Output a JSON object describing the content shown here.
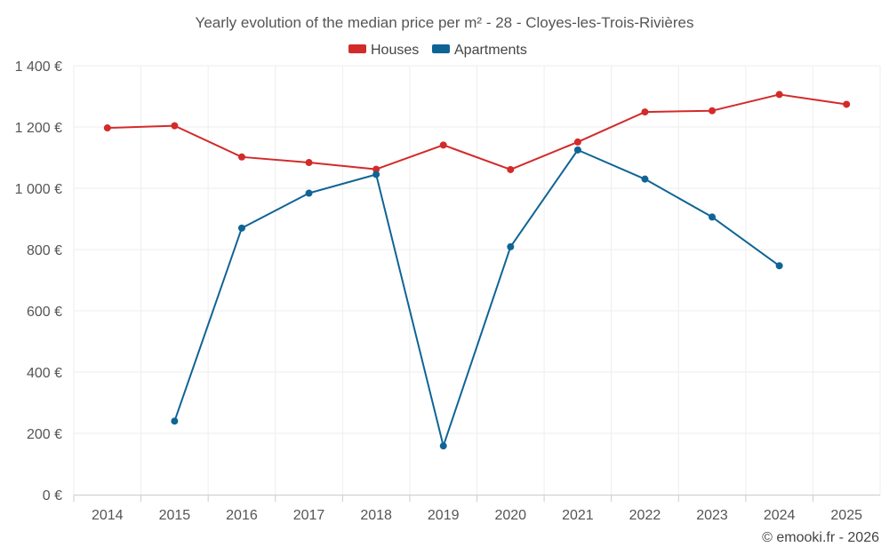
{
  "chart_data": {
    "type": "line",
    "title": "Yearly evolution of the median price per m² - 28 - Cloyes-les-Trois-Rivières",
    "categories": [
      "2014",
      "2015",
      "2016",
      "2017",
      "2018",
      "2019",
      "2020",
      "2021",
      "2022",
      "2023",
      "2024",
      "2025"
    ],
    "y_tick_labels": [
      "0 €",
      "200 €",
      "400 €",
      "600 €",
      "800 €",
      "1 000 €",
      "1 200 €",
      "1 400 €"
    ],
    "ylim": [
      0,
      1400
    ],
    "y_ticks": [
      0,
      200,
      400,
      600,
      800,
      1000,
      1200,
      1400
    ],
    "grid": true,
    "legend_position": "top-center",
    "series": [
      {
        "name": "Houses",
        "color": "#d32a2a",
        "values": [
          1197,
          1204,
          1102,
          1084,
          1062,
          1141,
          1061,
          1151,
          1249,
          1253,
          1306,
          1274
        ]
      },
      {
        "name": "Apartments",
        "color": "#0f6496",
        "values": [
          null,
          240,
          870,
          984,
          1045,
          159,
          809,
          1125,
          1030,
          906,
          747,
          null
        ]
      }
    ]
  },
  "credit": "© emooki.fr - 2026"
}
